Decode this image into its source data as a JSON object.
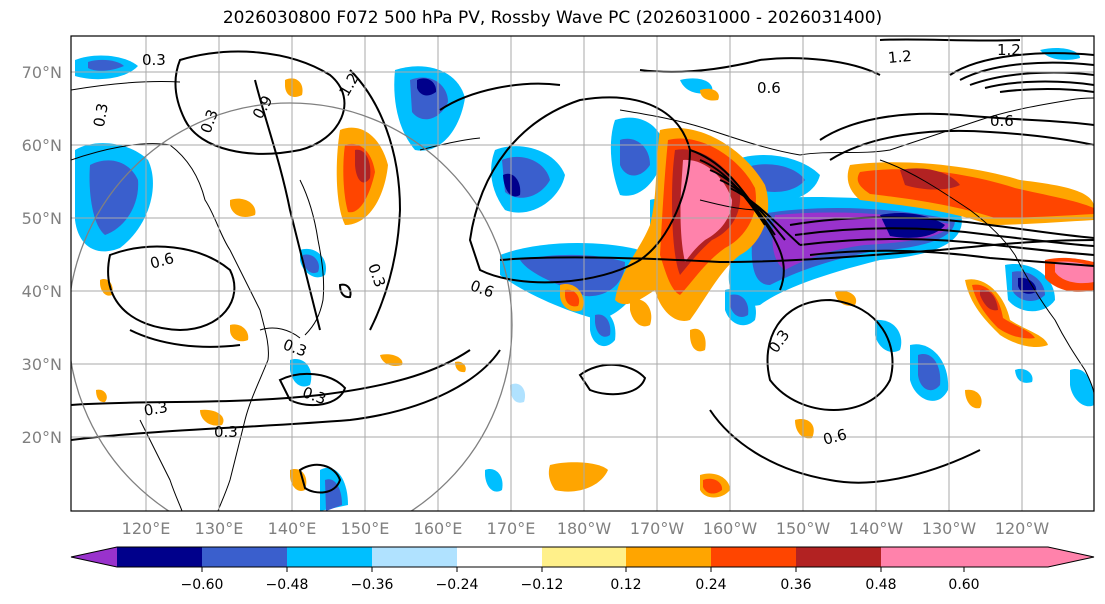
{
  "title": "2026030800 F072 500 hPa PV, Rossby Wave PC (2026031000 - 2026031400)",
  "lat_labels": [
    "70°N",
    "60°N",
    "50°N",
    "40°N",
    "30°N",
    "20°N"
  ],
  "lon_labels": [
    "120°E",
    "130°E",
    "140°E",
    "150°E",
    "160°E",
    "170°E",
    "180°W",
    "170°W",
    "160°W",
    "150°W",
    "140°W",
    "130°W",
    "120°W"
  ],
  "contour_labels": [
    "0.3",
    "0.3",
    "0.3",
    "0.3",
    "0.6",
    "0.6",
    "0.6",
    "0.6",
    "0.9",
    "1.2",
    "1.2",
    "1.2",
    "0.3",
    "0.6",
    "0.3",
    "0.3",
    "0.3",
    "0.3"
  ],
  "colorbar": {
    "ticks": [
      "−0.60",
      "−0.48",
      "−0.36",
      "−0.24",
      "−0.12",
      "0.12",
      "0.24",
      "0.36",
      "0.48",
      "0.60"
    ],
    "colors": [
      "#9932cc",
      "#00008b",
      "#3a5fcd",
      "#00bfff",
      "#b0e2ff",
      "#ffffff",
      "#fff08a",
      "#ffa500",
      "#ff4500",
      "#b22222",
      "#ff82ab"
    ]
  }
}
